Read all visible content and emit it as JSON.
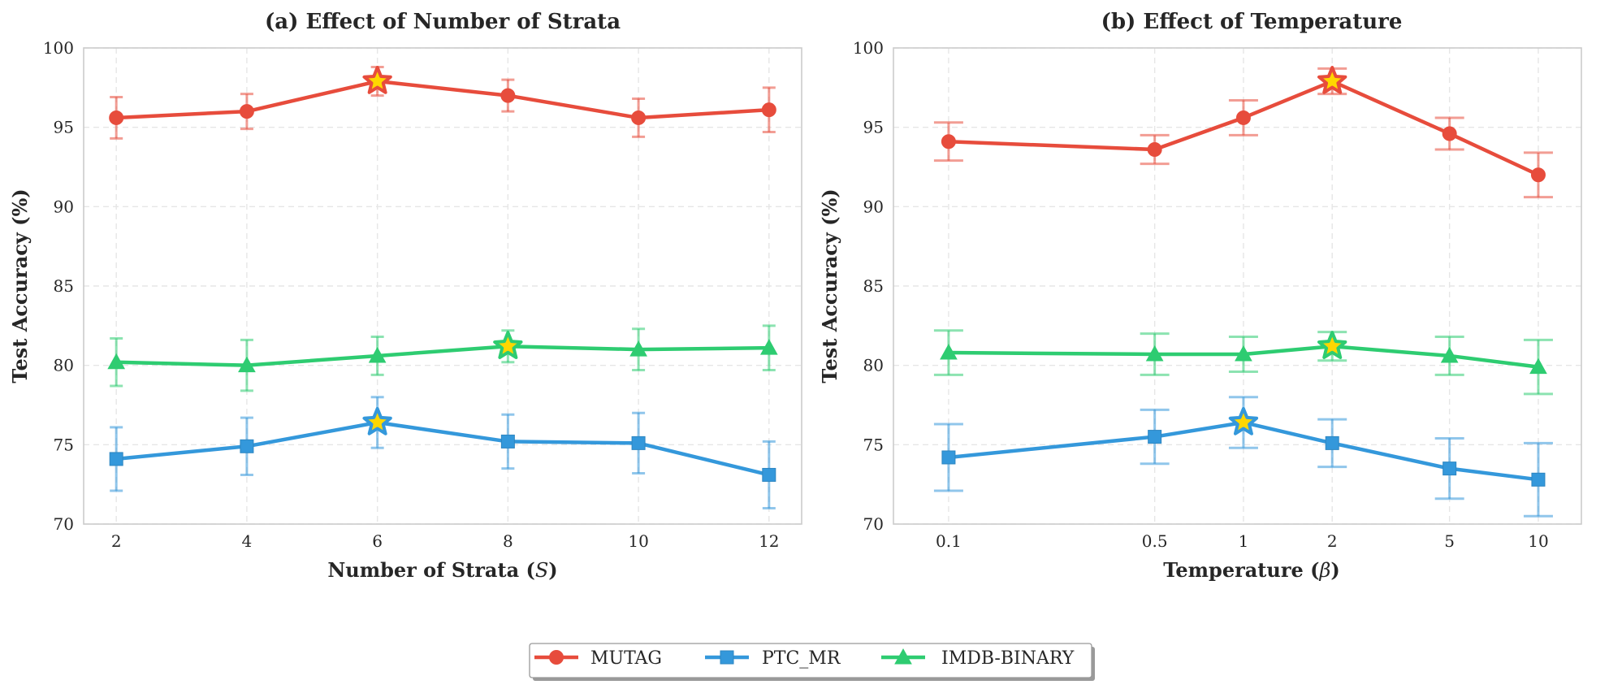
{
  "colors": {
    "MUTAG": "#e74c3c",
    "PTC_MR": "#3498db",
    "IMDB-BINARY": "#2ecc71",
    "star_fill": "#ffd700"
  },
  "legend": [
    {
      "name": "MUTAG",
      "marker": "circle"
    },
    {
      "name": "PTC_MR",
      "marker": "square"
    },
    {
      "name": "IMDB-BINARY",
      "marker": "triangle"
    }
  ],
  "chart_data": [
    {
      "type": "line",
      "title": "(a) Effect of Number of Strata",
      "xlabel": "Number of Strata (",
      "xlabel_symbol": "S",
      "xlabel_suffix": ")",
      "ylabel": "Test Accuracy (%)",
      "x": [
        2,
        4,
        6,
        8,
        10,
        12
      ],
      "x_tick_labels": [
        "2",
        "4",
        "6",
        "8",
        "10",
        "12"
      ],
      "x_scale": "linear",
      "xlim": [
        1.5,
        12.5
      ],
      "ylim": [
        70,
        100
      ],
      "y_ticks": [
        70,
        75,
        80,
        85,
        90,
        95,
        100
      ],
      "grid": true,
      "series": [
        {
          "name": "MUTAG",
          "marker": "circle",
          "values": [
            95.6,
            96.0,
            97.9,
            97.0,
            95.6,
            96.1
          ],
          "errors": [
            1.3,
            1.1,
            0.9,
            1.0,
            1.2,
            1.4
          ],
          "best_index": 2
        },
        {
          "name": "PTC_MR",
          "marker": "square",
          "values": [
            74.1,
            74.9,
            76.4,
            75.2,
            75.1,
            73.1
          ],
          "errors": [
            2.0,
            1.8,
            1.6,
            1.7,
            1.9,
            2.1
          ],
          "best_index": 2
        },
        {
          "name": "IMDB-BINARY",
          "marker": "triangle",
          "values": [
            80.2,
            80.0,
            80.6,
            81.2,
            81.0,
            81.1
          ],
          "errors": [
            1.5,
            1.6,
            1.2,
            1.0,
            1.3,
            1.4
          ],
          "best_index": 3
        }
      ]
    },
    {
      "type": "line",
      "title": "(b) Effect of Temperature",
      "xlabel": "Temperature (",
      "xlabel_symbol": "β",
      "xlabel_suffix": ")",
      "ylabel": "Test Accuracy (%)",
      "x": [
        0.1,
        0.5,
        1,
        2,
        5,
        10
      ],
      "x_tick_labels": [
        "0.1",
        "0.5",
        "1",
        "2",
        "5",
        "10"
      ],
      "x_scale": "log",
      "xlim": [
        0.065,
        14
      ],
      "ylim": [
        70,
        100
      ],
      "y_ticks": [
        70,
        75,
        80,
        85,
        90,
        95,
        100
      ],
      "grid": true,
      "series": [
        {
          "name": "MUTAG",
          "marker": "circle",
          "values": [
            94.1,
            93.6,
            95.6,
            97.9,
            94.6,
            92.0
          ],
          "errors": [
            1.2,
            0.9,
            1.1,
            0.8,
            1.0,
            1.4
          ],
          "best_index": 3
        },
        {
          "name": "PTC_MR",
          "marker": "square",
          "values": [
            74.2,
            75.5,
            76.4,
            75.1,
            73.5,
            72.8
          ],
          "errors": [
            2.1,
            1.7,
            1.6,
            1.5,
            1.9,
            2.3
          ],
          "best_index": 2
        },
        {
          "name": "IMDB-BINARY",
          "marker": "triangle",
          "values": [
            80.8,
            80.7,
            80.7,
            81.2,
            80.6,
            79.9
          ],
          "errors": [
            1.4,
            1.3,
            1.1,
            0.9,
            1.2,
            1.7
          ],
          "best_index": 3
        }
      ]
    }
  ]
}
